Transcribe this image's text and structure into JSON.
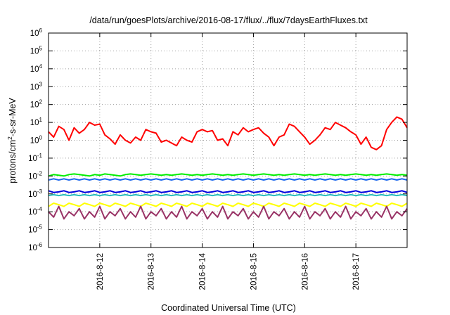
{
  "chart_data": {
    "type": "line",
    "title": "/data/run/goesPlots/archive/2016-08-17/flux/../flux/7daysEarthFluxes.txt",
    "xlabel": "Coordinated Universal Time (UTC)",
    "ylabel": {
      "pre": "protons/cm",
      "sup": "2",
      "post": "-s-sr-MeV"
    },
    "y_scale": "log",
    "ylim": [
      1e-06,
      1000000.0
    ],
    "y_ticks": [
      {
        "value": 1e-06,
        "base": "10",
        "exp": "-6"
      },
      {
        "value": 1e-05,
        "base": "10",
        "exp": "-5"
      },
      {
        "value": 0.0001,
        "base": "10",
        "exp": "-4"
      },
      {
        "value": 0.001,
        "base": "10",
        "exp": "-3"
      },
      {
        "value": 0.01,
        "base": "10",
        "exp": "-2"
      },
      {
        "value": 0.1,
        "base": "10",
        "exp": "-1"
      },
      {
        "value": 1,
        "base": "10",
        "exp": "0"
      },
      {
        "value": 10,
        "base": "10",
        "exp": "1"
      },
      {
        "value": 100,
        "base": "10",
        "exp": "2"
      },
      {
        "value": 1000,
        "base": "10",
        "exp": "3"
      },
      {
        "value": 10000,
        "base": "10",
        "exp": "4"
      },
      {
        "value": 100000,
        "base": "10",
        "exp": "5"
      },
      {
        "value": 1000000,
        "base": "10",
        "exp": "6"
      }
    ],
    "x_ticks": [
      "2016-8-12",
      "2016-8-13",
      "2016-8-14",
      "2016-8-15",
      "2016-8-16",
      "2016-8-17"
    ],
    "x_tick_values": [
      1,
      2,
      3,
      4,
      5,
      6
    ],
    "xlim": [
      0,
      7
    ],
    "grid": true,
    "series": [
      {
        "color": "#ff0000",
        "x": [
          0,
          0.1,
          0.2,
          0.3,
          0.4,
          0.5,
          0.6,
          0.7,
          0.8,
          0.9,
          1.0,
          1.1,
          1.2,
          1.3,
          1.4,
          1.5,
          1.6,
          1.7,
          1.8,
          1.9,
          2.0,
          2.1,
          2.2,
          2.3,
          2.4,
          2.5,
          2.6,
          2.7,
          2.8,
          2.9,
          3.0,
          3.1,
          3.2,
          3.3,
          3.4,
          3.5,
          3.6,
          3.7,
          3.8,
          3.9,
          4.0,
          4.1,
          4.2,
          4.3,
          4.4,
          4.5,
          4.6,
          4.7,
          4.8,
          4.9,
          5.0,
          5.1,
          5.2,
          5.3,
          5.4,
          5.5,
          5.6,
          5.7,
          5.8,
          5.9,
          6.0,
          6.1,
          6.2,
          6.3,
          6.4,
          6.5,
          6.6,
          6.7,
          6.8,
          6.9,
          7.0
        ],
        "values": [
          3,
          1.5,
          6,
          4,
          1,
          5,
          2.5,
          4,
          10,
          7,
          8,
          2,
          1.2,
          0.6,
          2,
          1,
          0.7,
          1.5,
          1,
          4,
          3,
          2.5,
          0.8,
          1,
          0.7,
          0.5,
          1.5,
          1,
          0.8,
          3,
          4,
          3,
          3.5,
          1,
          1.2,
          0.5,
          3,
          2,
          5,
          3,
          4,
          5,
          2.5,
          1.5,
          0.5,
          1.5,
          2,
          8,
          6,
          3,
          1.5,
          0.6,
          1,
          2,
          5,
          4,
          10,
          7,
          5,
          3,
          2,
          0.6,
          1.5,
          0.4,
          0.3,
          0.5,
          4,
          10,
          20,
          15,
          5
        ]
      },
      {
        "color": "#00ee00",
        "x": [
          0,
          0.1,
          0.2,
          0.3,
          0.4,
          0.5,
          0.6,
          0.7,
          0.8,
          0.9,
          1.0,
          1.1,
          1.2,
          1.3,
          1.4,
          1.5,
          1.6,
          1.7,
          1.8,
          1.9,
          2.0,
          2.1,
          2.2,
          2.3,
          2.4,
          2.5,
          2.6,
          2.7,
          2.8,
          2.9,
          3.0,
          3.1,
          3.2,
          3.3,
          3.4,
          3.5,
          3.6,
          3.7,
          3.8,
          3.9,
          4.0,
          4.1,
          4.2,
          4.3,
          4.4,
          4.5,
          4.6,
          4.7,
          4.8,
          4.9,
          5.0,
          5.1,
          5.2,
          5.3,
          5.4,
          5.5,
          5.6,
          5.7,
          5.8,
          5.9,
          6.0,
          6.1,
          6.2,
          6.3,
          6.4,
          6.5,
          6.6,
          6.7,
          6.8,
          6.9,
          7.0
        ],
        "values": [
          0.01,
          0.012,
          0.011,
          0.01,
          0.012,
          0.013,
          0.012,
          0.011,
          0.01,
          0.012,
          0.011,
          0.013,
          0.012,
          0.011,
          0.01,
          0.012,
          0.013,
          0.012,
          0.011,
          0.012,
          0.013,
          0.012,
          0.011,
          0.012,
          0.011,
          0.012,
          0.013,
          0.012,
          0.011,
          0.012,
          0.011,
          0.012,
          0.013,
          0.012,
          0.011,
          0.012,
          0.011,
          0.012,
          0.013,
          0.012,
          0.011,
          0.012,
          0.013,
          0.012,
          0.011,
          0.012,
          0.011,
          0.012,
          0.013,
          0.012,
          0.011,
          0.012,
          0.011,
          0.012,
          0.013,
          0.012,
          0.011,
          0.012,
          0.011,
          0.012,
          0.013,
          0.012,
          0.011,
          0.012,
          0.011,
          0.012,
          0.013,
          0.012,
          0.011,
          0.012,
          0.011
        ]
      },
      {
        "color": "#1a66ee",
        "x": [
          0,
          0.1,
          0.2,
          0.3,
          0.4,
          0.5,
          0.6,
          0.7,
          0.8,
          0.9,
          1.0,
          1.1,
          1.2,
          1.3,
          1.4,
          1.5,
          1.6,
          1.7,
          1.8,
          1.9,
          2.0,
          2.1,
          2.2,
          2.3,
          2.4,
          2.5,
          2.6,
          2.7,
          2.8,
          2.9,
          3.0,
          3.1,
          3.2,
          3.3,
          3.4,
          3.5,
          3.6,
          3.7,
          3.8,
          3.9,
          4.0,
          4.1,
          4.2,
          4.3,
          4.4,
          4.5,
          4.6,
          4.7,
          4.8,
          4.9,
          5.0,
          5.1,
          5.2,
          5.3,
          5.4,
          5.5,
          5.6,
          5.7,
          5.8,
          5.9,
          6.0,
          6.1,
          6.2,
          6.3,
          6.4,
          6.5,
          6.6,
          6.7,
          6.8,
          6.9,
          7.0
        ],
        "values": [
          0.006,
          0.007,
          0.006,
          0.007,
          0.006,
          0.007,
          0.006,
          0.007,
          0.006,
          0.007,
          0.006,
          0.007,
          0.006,
          0.007,
          0.006,
          0.007,
          0.006,
          0.007,
          0.006,
          0.007,
          0.006,
          0.007,
          0.006,
          0.007,
          0.006,
          0.007,
          0.006,
          0.007,
          0.006,
          0.007,
          0.006,
          0.007,
          0.006,
          0.007,
          0.006,
          0.007,
          0.006,
          0.007,
          0.006,
          0.007,
          0.006,
          0.007,
          0.006,
          0.007,
          0.006,
          0.007,
          0.006,
          0.007,
          0.006,
          0.007,
          0.006,
          0.007,
          0.006,
          0.007,
          0.006,
          0.007,
          0.006,
          0.007,
          0.006,
          0.007,
          0.006,
          0.007,
          0.006,
          0.007,
          0.006,
          0.007,
          0.006,
          0.007,
          0.006,
          0.007,
          0.006
        ]
      },
      {
        "color": "#0000dd",
        "x": [
          0,
          0.1,
          0.2,
          0.3,
          0.4,
          0.5,
          0.6,
          0.7,
          0.8,
          0.9,
          1.0,
          1.1,
          1.2,
          1.3,
          1.4,
          1.5,
          1.6,
          1.7,
          1.8,
          1.9,
          2.0,
          2.1,
          2.2,
          2.3,
          2.4,
          2.5,
          2.6,
          2.7,
          2.8,
          2.9,
          3.0,
          3.1,
          3.2,
          3.3,
          3.4,
          3.5,
          3.6,
          3.7,
          3.8,
          3.9,
          4.0,
          4.1,
          4.2,
          4.3,
          4.4,
          4.5,
          4.6,
          4.7,
          4.8,
          4.9,
          5.0,
          5.1,
          5.2,
          5.3,
          5.4,
          5.5,
          5.6,
          5.7,
          5.8,
          5.9,
          6.0,
          6.1,
          6.2,
          6.3,
          6.4,
          6.5,
          6.6,
          6.7,
          6.8,
          6.9,
          7.0
        ],
        "values": [
          0.0015,
          0.0012,
          0.0013,
          0.0015,
          0.0012,
          0.0013,
          0.0015,
          0.0012,
          0.0013,
          0.0015,
          0.0012,
          0.0013,
          0.0015,
          0.0012,
          0.0013,
          0.0015,
          0.0012,
          0.0013,
          0.0015,
          0.0012,
          0.0013,
          0.0015,
          0.0012,
          0.0013,
          0.0015,
          0.0012,
          0.0013,
          0.0015,
          0.0012,
          0.0013,
          0.0015,
          0.0012,
          0.0013,
          0.0015,
          0.0012,
          0.0013,
          0.0015,
          0.0012,
          0.0013,
          0.0015,
          0.0012,
          0.0013,
          0.0015,
          0.0012,
          0.0013,
          0.0015,
          0.0012,
          0.0013,
          0.0015,
          0.0012,
          0.0013,
          0.0015,
          0.0012,
          0.0013,
          0.0015,
          0.0012,
          0.0013,
          0.0015,
          0.0012,
          0.0013,
          0.0015,
          0.0012,
          0.0013,
          0.0015,
          0.0012,
          0.0013,
          0.0015,
          0.0012,
          0.0013,
          0.0015,
          0.0012
        ]
      },
      {
        "color": "#22bbbb",
        "x": [
          0,
          0.1,
          0.2,
          0.3,
          0.4,
          0.5,
          0.6,
          0.7,
          0.8,
          0.9,
          1.0,
          1.1,
          1.2,
          1.3,
          1.4,
          1.5,
          1.6,
          1.7,
          1.8,
          1.9,
          2.0,
          2.1,
          2.2,
          2.3,
          2.4,
          2.5,
          2.6,
          2.7,
          2.8,
          2.9,
          3.0,
          3.1,
          3.2,
          3.3,
          3.4,
          3.5,
          3.6,
          3.7,
          3.8,
          3.9,
          4.0,
          4.1,
          4.2,
          4.3,
          4.4,
          4.5,
          4.6,
          4.7,
          4.8,
          4.9,
          5.0,
          5.1,
          5.2,
          5.3,
          5.4,
          5.5,
          5.6,
          5.7,
          5.8,
          5.9,
          6.0,
          6.1,
          6.2,
          6.3,
          6.4,
          6.5,
          6.6,
          6.7,
          6.8,
          6.9,
          7.0
        ],
        "values": [
          0.0008,
          0.0009,
          0.0008,
          0.0009,
          0.0008,
          0.0009,
          0.0008,
          0.0009,
          0.0008,
          0.0009,
          0.0008,
          0.0009,
          0.0008,
          0.0009,
          0.0008,
          0.0009,
          0.0008,
          0.0009,
          0.0008,
          0.0009,
          0.0008,
          0.0009,
          0.0008,
          0.0009,
          0.0008,
          0.0009,
          0.0008,
          0.0009,
          0.0008,
          0.0009,
          0.0008,
          0.0009,
          0.0008,
          0.0009,
          0.0008,
          0.0009,
          0.0008,
          0.0009,
          0.0008,
          0.0009,
          0.0008,
          0.0009,
          0.0008,
          0.0009,
          0.0008,
          0.0009,
          0.0008,
          0.0009,
          0.0008,
          0.0009,
          0.0008,
          0.0009,
          0.0008,
          0.0009,
          0.0008,
          0.0009,
          0.0008,
          0.0009,
          0.0008,
          0.0009,
          0.0008,
          0.0009,
          0.0008,
          0.0009,
          0.0008,
          0.0009,
          0.0008,
          0.0009,
          0.0008,
          0.0009,
          0.0008
        ]
      },
      {
        "color": "#ffff00",
        "x": [
          0,
          0.1,
          0.2,
          0.3,
          0.4,
          0.5,
          0.6,
          0.7,
          0.8,
          0.9,
          1.0,
          1.1,
          1.2,
          1.3,
          1.4,
          1.5,
          1.6,
          1.7,
          1.8,
          1.9,
          2.0,
          2.1,
          2.2,
          2.3,
          2.4,
          2.5,
          2.6,
          2.7,
          2.8,
          2.9,
          3.0,
          3.1,
          3.2,
          3.3,
          3.4,
          3.5,
          3.6,
          3.7,
          3.8,
          3.9,
          4.0,
          4.1,
          4.2,
          4.3,
          4.4,
          4.5,
          4.6,
          4.7,
          4.8,
          4.9,
          5.0,
          5.1,
          5.2,
          5.3,
          5.4,
          5.5,
          5.6,
          5.7,
          5.8,
          5.9,
          6.0,
          6.1,
          6.2,
          6.3,
          6.4,
          6.5,
          6.6,
          6.7,
          6.8,
          6.9,
          7.0
        ],
        "values": [
          0.0002,
          0.0003,
          0.00025,
          0.0002,
          0.0003,
          0.00025,
          0.0002,
          0.0003,
          0.00025,
          0.0002,
          0.0003,
          0.00025,
          0.0002,
          0.0003,
          0.00025,
          0.0002,
          0.0003,
          0.00025,
          0.0002,
          0.0003,
          0.00025,
          0.0002,
          0.0003,
          0.00025,
          0.0002,
          0.0003,
          0.00025,
          0.0002,
          0.0003,
          0.00025,
          0.0002,
          0.0003,
          0.00025,
          0.0002,
          0.0003,
          0.00025,
          0.0002,
          0.0003,
          0.00025,
          0.0002,
          0.0003,
          0.00025,
          0.0002,
          0.0003,
          0.00025,
          0.0002,
          0.0003,
          0.00025,
          0.0002,
          0.0003,
          0.00025,
          0.0002,
          0.0003,
          0.00025,
          0.0002,
          0.0003,
          0.00025,
          0.0002,
          0.0003,
          0.00025,
          0.0002,
          0.0003,
          0.00025,
          0.0002,
          0.0003,
          0.00025,
          0.0002,
          0.0003,
          0.00025,
          0.0002,
          0.0003
        ]
      },
      {
        "color": "#993366",
        "x": [
          0,
          0.1,
          0.2,
          0.3,
          0.4,
          0.5,
          0.6,
          0.7,
          0.8,
          0.9,
          1.0,
          1.1,
          1.2,
          1.3,
          1.4,
          1.5,
          1.6,
          1.7,
          1.8,
          1.9,
          2.0,
          2.1,
          2.2,
          2.3,
          2.4,
          2.5,
          2.6,
          2.7,
          2.8,
          2.9,
          3.0,
          3.1,
          3.2,
          3.3,
          3.4,
          3.5,
          3.6,
          3.7,
          3.8,
          3.9,
          4.0,
          4.1,
          4.2,
          4.3,
          4.4,
          4.5,
          4.6,
          4.7,
          4.8,
          4.9,
          5.0,
          5.1,
          5.2,
          5.3,
          5.4,
          5.5,
          5.6,
          5.7,
          5.8,
          5.9,
          6.0,
          6.1,
          6.2,
          6.3,
          6.4,
          6.5,
          6.6,
          6.7,
          6.8,
          6.9,
          7.0
        ],
        "values": [
          0.0001,
          5e-05,
          0.0002,
          4e-05,
          0.0001,
          6e-05,
          0.00015,
          4e-05,
          0.0001,
          5e-05,
          0.0002,
          4e-05,
          0.0001,
          6e-05,
          0.00015,
          4e-05,
          0.0001,
          5e-05,
          0.0002,
          4e-05,
          0.0001,
          6e-05,
          0.00015,
          4e-05,
          0.0001,
          5e-05,
          0.0002,
          4e-05,
          0.0001,
          6e-05,
          0.00015,
          4e-05,
          0.0001,
          5e-05,
          0.0002,
          4e-05,
          0.0001,
          6e-05,
          0.00015,
          4e-05,
          0.0001,
          5e-05,
          0.0002,
          4e-05,
          0.0001,
          6e-05,
          0.00015,
          4e-05,
          0.0001,
          5e-05,
          0.0002,
          4e-05,
          0.0001,
          6e-05,
          0.00015,
          4e-05,
          0.0001,
          5e-05,
          0.0002,
          4e-05,
          0.0001,
          6e-05,
          0.00015,
          4e-05,
          0.0001,
          5e-05,
          0.0002,
          4e-05,
          0.0001,
          6e-05,
          0.00015
        ]
      }
    ]
  }
}
